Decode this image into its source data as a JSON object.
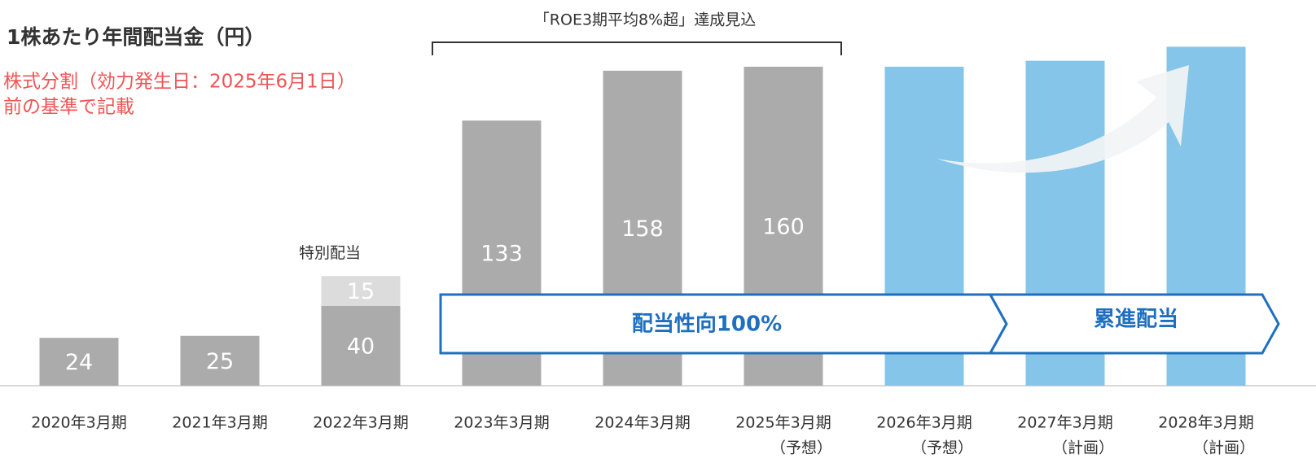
{
  "chart_data": {
    "type": "stacked_bar",
    "title": "1株あたり年間配当金（円）",
    "notes": [
      "株式分割（効力発生日：2025年6月1日）",
      "前の基準で記載"
    ],
    "bracket_label": "「ROE3期平均8%超」達成見込",
    "banners": [
      "配当性向100%",
      "累進配当"
    ],
    "categories": [
      "2020年3月期",
      "2021年3月期",
      "2022年3月期",
      "2023年3月期",
      "2024年3月期",
      "2025年3月期",
      "2026年3月期",
      "2027年3月期",
      "2028年3月期"
    ],
    "category_notes": [
      null,
      null,
      null,
      null,
      null,
      "（予想）",
      "（予想）",
      "（計画）",
      "（計画）"
    ],
    "series": [
      {
        "colors": [
          "#ababab",
          "#ababab",
          "#ababab",
          "#ababab",
          "#ababab",
          "#ababab",
          "#85c5ea",
          "#85c5ea",
          "#85c5ea"
        ],
        "values": [
          24,
          25,
          40,
          133,
          158,
          160,
          160,
          163,
          170
        ],
        "value_labels": [
          "24",
          "25",
          "40",
          "133",
          "158",
          "160",
          null,
          null,
          null
        ]
      },
      {
        "name": "特別配当",
        "color": "#dcdcdc",
        "values": [
          null,
          null,
          15,
          null,
          null,
          null,
          null,
          null,
          null
        ],
        "value_labels": [
          null,
          null,
          "15",
          null,
          null,
          null,
          null,
          null,
          null
        ]
      }
    ]
  }
}
